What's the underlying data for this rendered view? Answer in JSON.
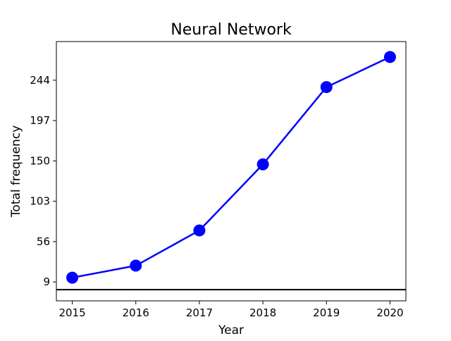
{
  "chart_data": {
    "type": "line",
    "title": "Neural Network",
    "xlabel": "Year",
    "ylabel": "Total frequency",
    "x": [
      2015,
      2016,
      2017,
      2018,
      2019,
      2020
    ],
    "series": [
      {
        "values": [
          14,
          28,
          69,
          146,
          236,
          271
        ],
        "color": "#0000ff",
        "marker": "circle"
      }
    ],
    "xticks": [
      "2015",
      "2016",
      "2017",
      "2018",
      "2019",
      "2020"
    ],
    "yticks": [
      9,
      56,
      103,
      150,
      197,
      244
    ],
    "xlim": [
      2014.75,
      2020.25
    ],
    "ylim": [
      -13,
      289
    ],
    "reference_line": {
      "y": 0,
      "color": "#000000"
    },
    "grid": false,
    "legend": "none"
  }
}
